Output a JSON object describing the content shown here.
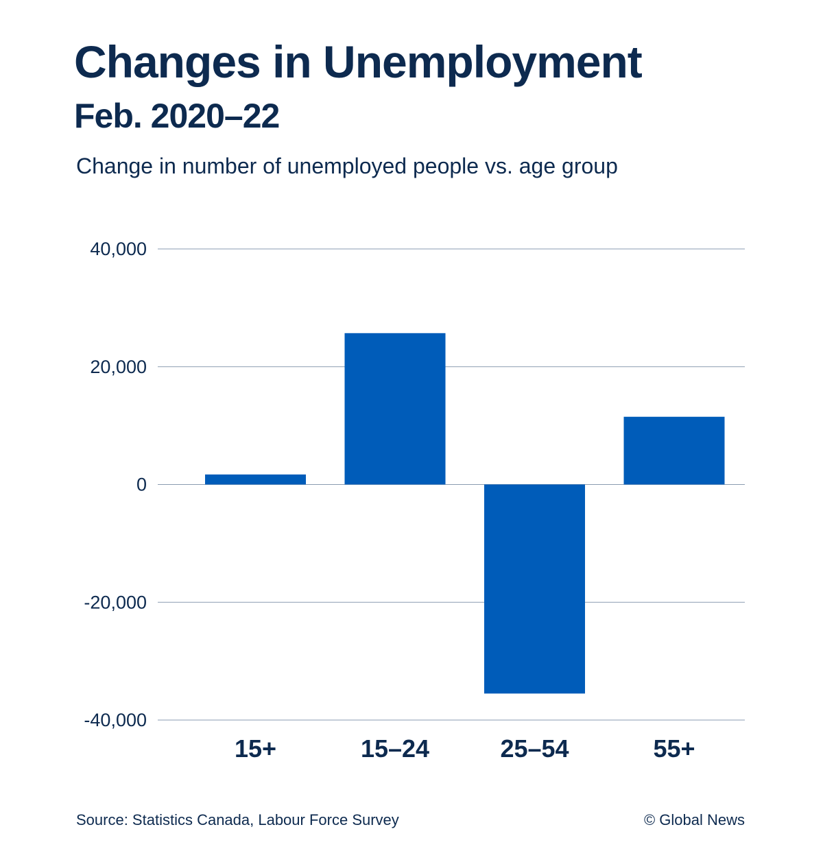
{
  "header": {
    "title": "Changes in Unemployment",
    "subtitle": "Feb. 2020–22",
    "caption": "Change in number of unemployed people vs. age group"
  },
  "footer": {
    "source": "Source: Statistics Canada, Labour Force Survey",
    "credit": "© Global News"
  },
  "colors": {
    "bar": "#005cb9",
    "text": "#0d2a4f",
    "grid": "#8a9bb0"
  },
  "chart_data": {
    "type": "bar",
    "title": "Changes in Unemployment",
    "subtitle": "Feb. 2020–22",
    "xlabel": "",
    "ylabel": "Change in number of unemployed people vs. age group",
    "categories": [
      "15+",
      "15–24",
      "25–54",
      "55+"
    ],
    "values": [
      1700,
      25700,
      -35500,
      11500
    ],
    "ylim": [
      -40000,
      40000
    ],
    "yticks": [
      40000,
      20000,
      0,
      -20000,
      -40000
    ],
    "ytick_labels": [
      "40,000",
      "20,000",
      "0",
      "-20,000",
      "-40,000"
    ],
    "grid": true,
    "legend": "none"
  }
}
